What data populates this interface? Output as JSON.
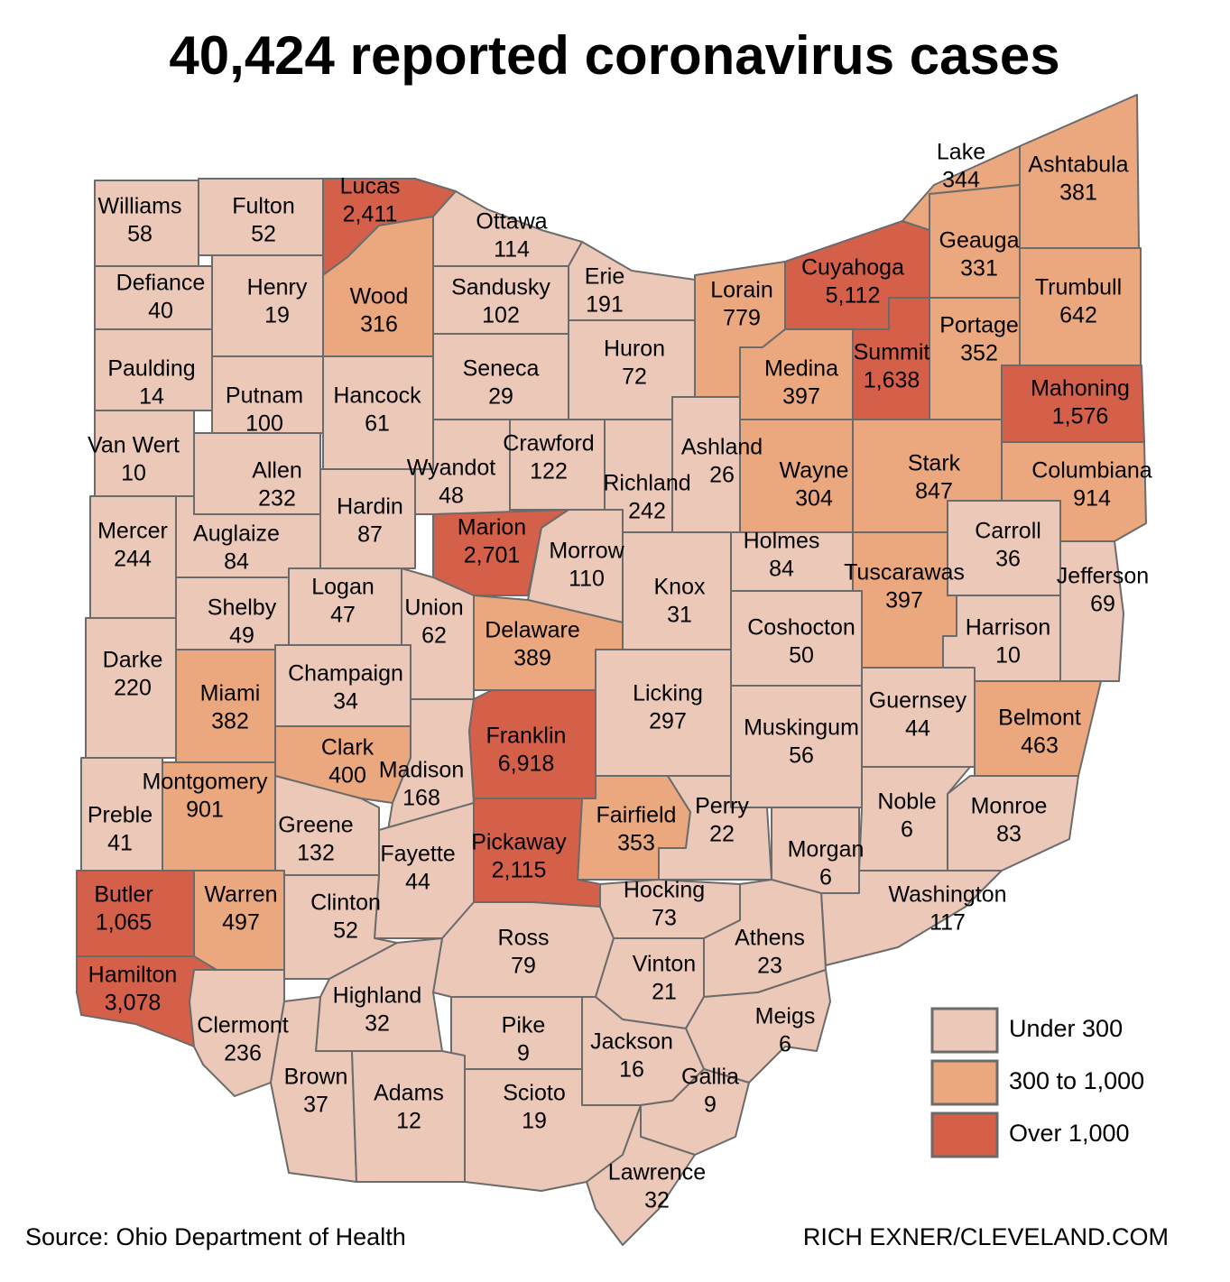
{
  "map": {
    "title": "40,424 reported coronavirus cases",
    "source": "Source: Ohio Department of Health",
    "credit": "RICH EXNER/CLEVELAND.COM",
    "breaks": [
      300,
      1000
    ],
    "legend": [
      {
        "label": "Under 300",
        "color": "#ecc8b8"
      },
      {
        "label": "300 to 1,000",
        "color": "#eba87f"
      },
      {
        "label": "Over 1,000",
        "color": "#d5604a"
      }
    ],
    "counties": [
      {
        "name": "Williams",
        "cases": 58
      },
      {
        "name": "Fulton",
        "cases": 52
      },
      {
        "name": "Lucas",
        "cases": 2411,
        "cases_label": "2,411"
      },
      {
        "name": "Ottawa",
        "cases": 114
      },
      {
        "name": "Wood",
        "cases": 316
      },
      {
        "name": "Defiance",
        "cases": 40
      },
      {
        "name": "Henry",
        "cases": 19
      },
      {
        "name": "Sandusky",
        "cases": 102
      },
      {
        "name": "Erie",
        "cases": 191
      },
      {
        "name": "Paulding",
        "cases": 14
      },
      {
        "name": "Putnam",
        "cases": 100
      },
      {
        "name": "Hancock",
        "cases": 61
      },
      {
        "name": "Seneca",
        "cases": 29
      },
      {
        "name": "Huron",
        "cases": 72
      },
      {
        "name": "Lorain",
        "cases": 779
      },
      {
        "name": "Cuyahoga",
        "cases": 5112,
        "cases_label": "5,112"
      },
      {
        "name": "Lake",
        "cases": 344
      },
      {
        "name": "Geauga",
        "cases": 331
      },
      {
        "name": "Ashtabula",
        "cases": 381
      },
      {
        "name": "Trumbull",
        "cases": 642
      },
      {
        "name": "Medina",
        "cases": 397
      },
      {
        "name": "Summit",
        "cases": 1638,
        "cases_label": "1,638"
      },
      {
        "name": "Portage",
        "cases": 352
      },
      {
        "name": "Mahoning",
        "cases": 1576,
        "cases_label": "1,576"
      },
      {
        "name": "Van Wert",
        "cases": 10
      },
      {
        "name": "Allen",
        "cases": 232
      },
      {
        "name": "Hardin",
        "cases": 87
      },
      {
        "name": "Wyandot",
        "cases": 48
      },
      {
        "name": "Crawford",
        "cases": 122
      },
      {
        "name": "Richland",
        "cases": 242
      },
      {
        "name": "Ashland",
        "cases": 26
      },
      {
        "name": "Wayne",
        "cases": 304
      },
      {
        "name": "Stark",
        "cases": 847
      },
      {
        "name": "Columbiana",
        "cases": 914
      },
      {
        "name": "Mercer",
        "cases": 244
      },
      {
        "name": "Auglaize",
        "cases": 84
      },
      {
        "name": "Marion",
        "cases": 2701,
        "cases_label": "2,701"
      },
      {
        "name": "Morrow",
        "cases": 110
      },
      {
        "name": "Knox",
        "cases": 31
      },
      {
        "name": "Holmes",
        "cases": 84
      },
      {
        "name": "Tuscarawas",
        "cases": 397
      },
      {
        "name": "Carroll",
        "cases": 36
      },
      {
        "name": "Jefferson",
        "cases": 69
      },
      {
        "name": "Darke",
        "cases": 220
      },
      {
        "name": "Shelby",
        "cases": 49
      },
      {
        "name": "Logan",
        "cases": 47
      },
      {
        "name": "Union",
        "cases": 62
      },
      {
        "name": "Delaware",
        "cases": 389
      },
      {
        "name": "Coshocton",
        "cases": 50
      },
      {
        "name": "Harrison",
        "cases": 10
      },
      {
        "name": "Miami",
        "cases": 382
      },
      {
        "name": "Champaign",
        "cases": 34
      },
      {
        "name": "Licking",
        "cases": 297
      },
      {
        "name": "Guernsey",
        "cases": 44
      },
      {
        "name": "Belmont",
        "cases": 463
      },
      {
        "name": "Muskingum",
        "cases": 56
      },
      {
        "name": "Clark",
        "cases": 400
      },
      {
        "name": "Madison",
        "cases": 168
      },
      {
        "name": "Franklin",
        "cases": 6918,
        "cases_label": "6,918"
      },
      {
        "name": "Montgomery",
        "cases": 901
      },
      {
        "name": "Preble",
        "cases": 41
      },
      {
        "name": "Greene",
        "cases": 132
      },
      {
        "name": "Fayette",
        "cases": 44
      },
      {
        "name": "Fairfield",
        "cases": 353
      },
      {
        "name": "Perry",
        "cases": 22
      },
      {
        "name": "Pickaway",
        "cases": 2115,
        "cases_label": "2,115"
      },
      {
        "name": "Morgan",
        "cases": 6
      },
      {
        "name": "Noble",
        "cases": 6
      },
      {
        "name": "Monroe",
        "cases": 83
      },
      {
        "name": "Washington",
        "cases": 117
      },
      {
        "name": "Butler",
        "cases": 1065,
        "cases_label": "1,065"
      },
      {
        "name": "Warren",
        "cases": 497
      },
      {
        "name": "Clinton",
        "cases": 52
      },
      {
        "name": "Hocking",
        "cases": 73
      },
      {
        "name": "Athens",
        "cases": 23
      },
      {
        "name": "Ross",
        "cases": 79
      },
      {
        "name": "Hamilton",
        "cases": 3078,
        "cases_label": "3,078"
      },
      {
        "name": "Clermont",
        "cases": 236
      },
      {
        "name": "Highland",
        "cases": 32
      },
      {
        "name": "Vinton",
        "cases": 21
      },
      {
        "name": "Meigs",
        "cases": 6
      },
      {
        "name": "Pike",
        "cases": 9
      },
      {
        "name": "Jackson",
        "cases": 16
      },
      {
        "name": "Brown",
        "cases": 37
      },
      {
        "name": "Adams",
        "cases": 12
      },
      {
        "name": "Scioto",
        "cases": 19
      },
      {
        "name": "Gallia",
        "cases": 9
      },
      {
        "name": "Lawrence",
        "cases": 32
      }
    ]
  }
}
